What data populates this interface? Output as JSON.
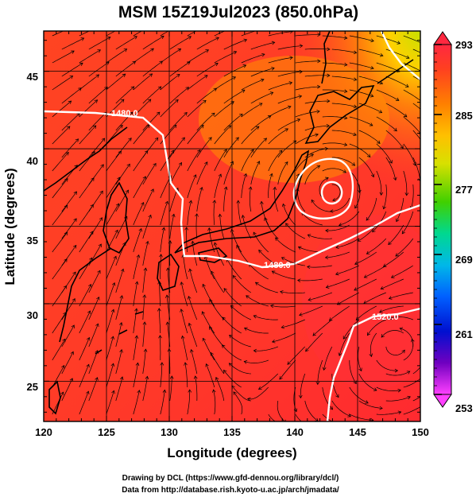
{
  "title": "MSM 15Z19Jul2023 (850.0hPa)",
  "x_axis": {
    "label": "Longitude (degrees)",
    "range": [
      120,
      150
    ],
    "ticks": [
      "120",
      "125",
      "130",
      "135",
      "140",
      "145",
      "150"
    ]
  },
  "y_axis": {
    "label": "Latitude  (degrees)",
    "range": [
      22.4,
      47.6
    ],
    "ticks": [
      "25",
      "30",
      "35",
      "40",
      "45"
    ]
  },
  "colorbar": {
    "ticks": [
      "293",
      "285",
      "277",
      "269",
      "261",
      "253"
    ],
    "range": [
      253,
      293
    ],
    "colors": [
      "#ff40ff",
      "#c000d0",
      "#5000c0",
      "#0020e0",
      "#0080ff",
      "#00c8d8",
      "#00d890",
      "#00d020",
      "#60d000",
      "#c8e000",
      "#ffe000",
      "#ffb000",
      "#ff7000",
      "#ff4020",
      "#ff2840"
    ]
  },
  "contour_labels": [
    "1480.0",
    "1480.0",
    "1520.0"
  ],
  "credits": {
    "line1": "Drawing by DCL (https://www.gfd-dennou.org/library/dcl/)",
    "line2": "Data from http://database.rish.kyoto-u.ac.jp/arch/jmadata/"
  },
  "chart_data": {
    "type": "heatmap",
    "title": "MSM 15Z19Jul2023 (850.0hPa)",
    "xlabel": "Longitude (degrees)",
    "ylabel": "Latitude  (degrees)",
    "xlim": [
      120,
      150
    ],
    "ylim": [
      22.4,
      47.6
    ],
    "xticks": [
      120,
      125,
      130,
      135,
      140,
      145,
      150
    ],
    "yticks": [
      25,
      30,
      35,
      40,
      45
    ],
    "colorbar_range": [
      253,
      293
    ],
    "colorbar_ticks": [
      293,
      285,
      277,
      269,
      261,
      253
    ],
    "fields": [
      "shaded: temperature (K)",
      "streamlines: wind",
      "white contours: geopotential height (m)"
    ],
    "contours": [
      {
        "label": "1480.0",
        "lon": 142.1,
        "lat": 33.5
      },
      {
        "label": "1480.0",
        "lon": 126.1,
        "lat": 43.2
      },
      {
        "label": "1520.0",
        "lon": 148.2,
        "lat": 30.0
      }
    ],
    "warm_regions": [
      "southern/western domain ~290-293"
    ],
    "cool_regions": [
      "northeast near 48N 150E ~282-285"
    ],
    "grid": true
  }
}
